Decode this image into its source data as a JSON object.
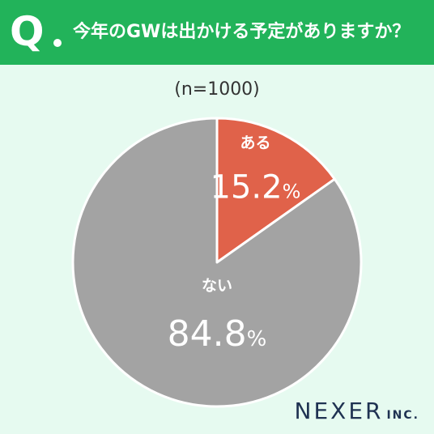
{
  "header": {
    "q_label": "Q",
    "question": "今年のGWは出かける予定がありますか？"
  },
  "sample_size": "(n=1000)",
  "colors": {
    "header_bg": "#22b35a",
    "background": "#e6faf0",
    "yes_slice": "#e0624a",
    "no_slice": "#a3a3a3"
  },
  "chart_data": {
    "type": "pie",
    "categories": [
      "ある",
      "ない"
    ],
    "values": [
      15.2,
      84.8
    ],
    "value_labels": [
      "15.2",
      "84.8"
    ],
    "unit": "%",
    "start": "12 o'clock",
    "direction": "clockwise"
  },
  "footer": {
    "logo_main": "NEXER",
    "logo_sub": "INC."
  }
}
